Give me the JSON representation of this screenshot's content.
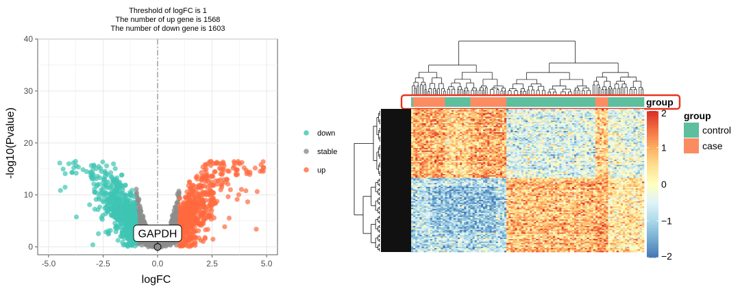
{
  "chart_data": [
    {
      "type": "scatter",
      "subtype": "volcano",
      "title_lines": [
        "Threshold of logFC is 1",
        "The number of up gene is 1568",
        "The number of down gene is 1603"
      ],
      "xlabel": "logFC",
      "ylabel": "-log10(Pvalue)",
      "xlim": [
        -5.5,
        5.5
      ],
      "ylim": [
        -1.5,
        40
      ],
      "xticks": [
        -5.0,
        -2.5,
        0.0,
        2.5,
        5.0
      ],
      "xtick_labels": [
        "-5.0",
        "-2.5",
        "0.0",
        "2.5",
        "5.0"
      ],
      "yticks": [
        0,
        10,
        20,
        30,
        40
      ],
      "ytick_labels": [
        "0",
        "10",
        "20",
        "30",
        "40"
      ],
      "threshold_logFC": 1,
      "counts": {
        "up": 1568,
        "down": 1603
      },
      "vline_x": 0,
      "annotation": {
        "label": "GAPDH",
        "x": 0.0,
        "y": 0.0
      },
      "legend": {
        "position": "right",
        "entries": [
          {
            "label": "down",
            "color": "#3ec4b3"
          },
          {
            "label": "stable",
            "color": "#8c8c8c"
          },
          {
            "label": "up",
            "color": "#ff6a3d"
          }
        ]
      },
      "series": [
        {
          "name": "down",
          "color": "#3ec4b3",
          "x_range": [
            -4.6,
            -1.0
          ],
          "y_max": 16.5
        },
        {
          "name": "stable",
          "color": "#8c8c8c",
          "x_range": [
            -1.0,
            1.0
          ],
          "y_max": 13.5
        },
        {
          "name": "up",
          "color": "#ff6a3d",
          "x_range": [
            1.0,
            4.9
          ],
          "y_max": 16.5
        }
      ],
      "grid": true
    },
    {
      "type": "heatmap",
      "row_dendrogram": true,
      "column_dendrogram": true,
      "annotation_label": "group",
      "highlight_color": "#e8321e",
      "column_groups": [
        {
          "group": "control",
          "from": 0,
          "to": 1
        },
        {
          "group": "case",
          "from": 1,
          "to": 16
        },
        {
          "group": "control",
          "from": 16,
          "to": 28
        },
        {
          "group": "case",
          "from": 28,
          "to": 45
        },
        {
          "group": "control",
          "from": 45,
          "to": 87
        },
        {
          "group": "case",
          "from": 87,
          "to": 93
        },
        {
          "group": "control",
          "from": 93,
          "to": 110
        }
      ],
      "n_columns": 110,
      "n_rows": 110,
      "value_range": [
        -2,
        2
      ],
      "colorbar": {
        "ticks": [
          2,
          1,
          0,
          -1,
          -2
        ],
        "tick_labels": [
          "2",
          "1",
          "0",
          "−1",
          "−2"
        ],
        "colors": [
          "#4575b4",
          "#74add1",
          "#abd9e9",
          "#e0f3f8",
          "#ffffbf",
          "#fee090",
          "#fdae61",
          "#f46d43",
          "#d73027"
        ]
      },
      "group_legend": {
        "title": "group",
        "entries": [
          {
            "label": "control",
            "color": "#5dbf9e"
          },
          {
            "label": "case",
            "color": "#fb8c62"
          }
        ]
      }
    }
  ]
}
